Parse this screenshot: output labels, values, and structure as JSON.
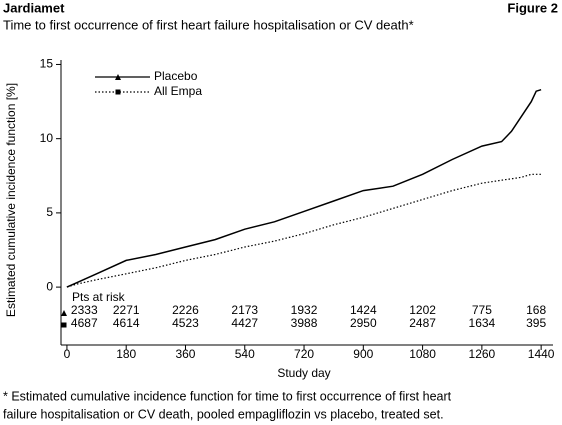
{
  "chart_data": {
    "type": "line",
    "header": "Jardiamet",
    "figure_label": "Figure 2",
    "title": "Time to first occurrence of first heart failure hospitalisation or CV death*",
    "xlabel": "Study day",
    "ylabel": "Estimated cumulative incidence function [%]",
    "x": [
      0,
      30,
      90,
      180,
      270,
      360,
      450,
      540,
      630,
      720,
      810,
      900,
      990,
      1080,
      1170,
      1260,
      1320,
      1350,
      1380,
      1410,
      1425,
      1440
    ],
    "series": [
      {
        "name": "Placebo",
        "color": "#000000",
        "dash": "solid",
        "marker": "triangle",
        "values": [
          0,
          0.3,
          0.9,
          1.8,
          2.2,
          2.7,
          3.2,
          3.9,
          4.4,
          5.1,
          5.8,
          6.5,
          6.8,
          7.6,
          8.6,
          9.5,
          9.8,
          10.5,
          11.5,
          12.5,
          13.2,
          13.3
        ]
      },
      {
        "name": "All Empa",
        "color": "#000000",
        "dash": "dotted",
        "marker": "square",
        "values": [
          0,
          0.2,
          0.5,
          0.9,
          1.3,
          1.8,
          2.2,
          2.7,
          3.1,
          3.6,
          4.2,
          4.7,
          5.3,
          5.9,
          6.5,
          7.0,
          7.2,
          7.3,
          7.4,
          7.6,
          7.6,
          7.6
        ]
      }
    ],
    "xlim": [
      -18,
      1476
    ],
    "ylim": [
      -3.9,
      15.3
    ],
    "xticks": [
      0,
      180,
      360,
      540,
      720,
      900,
      1080,
      1260,
      1440
    ],
    "yticks": [
      0,
      5,
      10,
      15
    ],
    "legend": "upper left",
    "at_risk_label": "Pts at risk",
    "at_risk": [
      [
        2333,
        2271,
        2226,
        2173,
        1932,
        1424,
        1202,
        775,
        168
      ],
      [
        4687,
        4614,
        4523,
        4427,
        3988,
        2950,
        2487,
        1634,
        395
      ]
    ],
    "footnote": [
      "* Estimated cumulative incidence function for time to first occurrence of first heart",
      "failure hospitalisation or CV death, pooled empagliflozin vs placebo, treated set."
    ]
  }
}
